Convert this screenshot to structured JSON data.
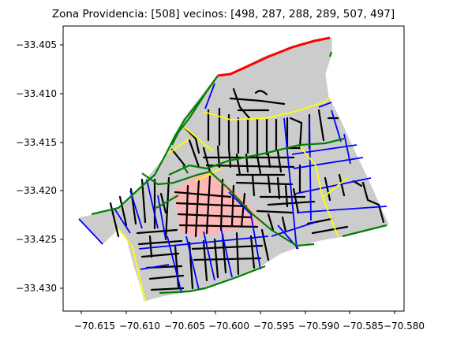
{
  "figure": {
    "title": "Zona Providencia: [508] vecinos: [498, 287, 288, 289, 507, 497]"
  },
  "map": {
    "zone_id": 508,
    "neighbor_ids": [
      498,
      287,
      288,
      289,
      507,
      497
    ],
    "x_ticks": [
      "−70.615",
      "−70.610",
      "−70.605",
      "−70.600",
      "−70.595",
      "−70.590",
      "−70.585",
      "−70.580"
    ],
    "y_ticks": [
      "−33.405",
      "−33.410",
      "−33.415",
      "−33.420",
      "−33.425",
      "−33.430"
    ],
    "colors": {
      "background_area": "#cccccc",
      "selected_zone": "#ffb6b6",
      "local_streets": "#000000",
      "major_street_green": "#008000",
      "major_street_blue": "#0000ff",
      "major_street_yellow": "#ffff00",
      "highway_red": "#ff0000",
      "axes": "#000000"
    }
  }
}
